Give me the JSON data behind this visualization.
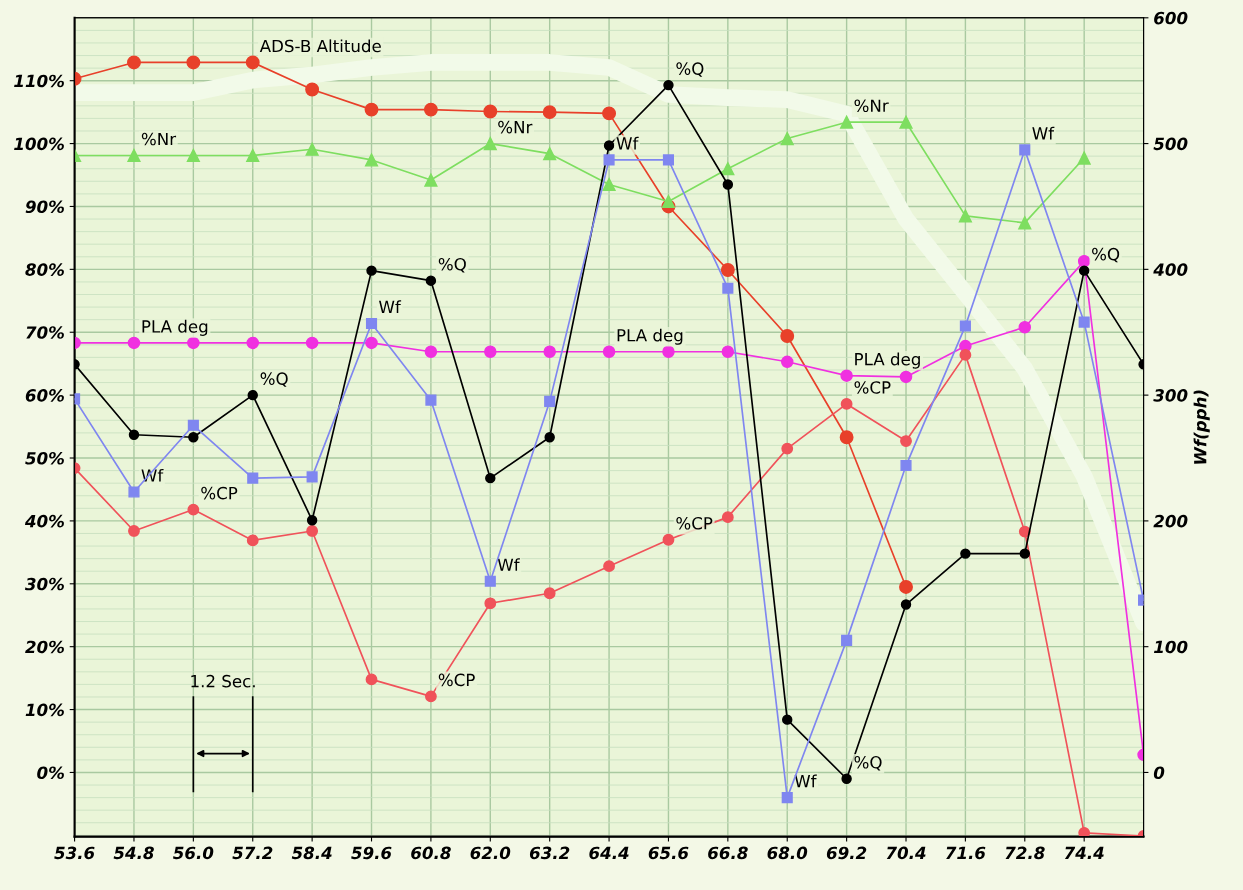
{
  "chart_data": {
    "type": "line",
    "categories": [
      "53.6",
      "54.8",
      "56.0",
      "57.2",
      "58.4",
      "59.6",
      "60.8",
      "62.0",
      "63.2",
      "64.4",
      "65.6",
      "66.8",
      "68.0",
      "69.2",
      "70.4",
      "71.6",
      "72.8",
      "74.4",
      null
    ],
    "y2label": "Wf(pph)",
    "ylim": [
      -10.2,
      120
    ],
    "yticks": [
      {
        "value": 0,
        "label": "0%"
      },
      {
        "value": 10,
        "label": "10%"
      },
      {
        "value": 20,
        "label": "20%"
      },
      {
        "value": 30,
        "label": "30%"
      },
      {
        "value": 40,
        "label": "40%"
      },
      {
        "value": 50,
        "label": "50%"
      },
      {
        "value": 60,
        "label": "60%"
      },
      {
        "value": 70,
        "label": "70%"
      },
      {
        "value": 80,
        "label": "80%"
      },
      {
        "value": 90,
        "label": "90%"
      },
      {
        "value": 100,
        "label": "100%"
      },
      {
        "value": 110,
        "label": "110%"
      }
    ],
    "y2lim": [
      -51,
      600
    ],
    "y2ticks": [
      0,
      100,
      200,
      300,
      400,
      500,
      600
    ],
    "grid": true,
    "series": [
      {
        "color": "#f2fae9",
        "marker": "none",
        "values": [
          108.1,
          108.1,
          108.1,
          110.1,
          110.9,
          112.1,
          112.9,
          112.9,
          112.9,
          112.1,
          107.8,
          107.3,
          107.0,
          104.7,
          88.0,
          76.2,
          64.2,
          47.1,
          23.8
        ]
      },
      {
        "color": "#e8402a",
        "marker": "circle",
        "values": [
          110.3,
          112.9,
          112.9,
          112.9,
          108.6,
          105.4,
          105.4,
          105.1,
          105.0,
          104.8,
          90.0,
          79.9,
          69.4,
          53.3,
          29.5,
          null,
          null,
          null,
          null
        ]
      },
      {
        "color": "#7ede60",
        "marker": "triangle",
        "values": [
          98.1,
          98.1,
          98.1,
          98.1,
          99.1,
          97.4,
          94.2,
          100.0,
          98.4,
          93.5,
          90.8,
          96.0,
          100.8,
          103.4,
          103.4,
          88.5,
          87.4,
          97.7,
          null
        ]
      },
      {
        "color": "#f030e0",
        "marker": "circle",
        "values": [
          68.3,
          68.3,
          68.3,
          68.3,
          68.3,
          68.3,
          66.9,
          66.9,
          66.9,
          66.9,
          66.9,
          66.9,
          65.3,
          63.1,
          62.9,
          67.8,
          70.8,
          81.3,
          2.8
        ]
      },
      {
        "color": "#f0525a",
        "marker": "circle",
        "values": [
          48.4,
          38.4,
          41.8,
          36.9,
          38.4,
          14.8,
          12.1,
          26.9,
          28.5,
          32.8,
          37.0,
          40.6,
          51.5,
          58.6,
          52.7,
          66.4,
          38.3,
          -9.6,
          -10.1
        ]
      },
      {
        "color": "#7f86f0",
        "marker": "square",
        "axis": "y2",
        "values": [
          297,
          223,
          276,
          234,
          235,
          357,
          296,
          152,
          295,
          487,
          487,
          385,
          -20,
          105,
          244,
          355,
          495,
          358,
          137
        ]
      },
      {
        "color": "#000000",
        "marker": "circle",
        "values": [
          64.9,
          53.7,
          53.3,
          60.0,
          40.1,
          79.8,
          78.2,
          46.8,
          53.3,
          99.7,
          109.3,
          93.5,
          8.4,
          -1,
          26.7,
          34.8,
          34.8,
          79.8,
          64.9
        ]
      }
    ],
    "annotations": [
      {
        "text": "ADS-B Altitude",
        "x": "57.2",
        "y": 112.9
      },
      {
        "text": "%Nr",
        "x": "54.8",
        "y": 98.1
      },
      {
        "text": "%Nr",
        "x": "62.0",
        "y": 100.0
      },
      {
        "text": "%Nr",
        "x": "69.2",
        "y": 103.4
      },
      {
        "text": "PLA deg",
        "x": "54.8",
        "y": 68.3
      },
      {
        "text": "PLA deg",
        "x": "64.4",
        "y": 66.9
      },
      {
        "text": "PLA deg",
        "x": "69.2",
        "y": 63.1
      },
      {
        "text": "%Q",
        "x": "57.2",
        "y": 60.0
      },
      {
        "text": "%Q",
        "x": "60.8",
        "y": 78.2
      },
      {
        "text": "%Q",
        "x": "65.6",
        "y": 109.3
      },
      {
        "text": "%Q",
        "x": "69.2",
        "y": -1
      },
      {
        "text": "%Q",
        "x": "74.4",
        "y": 79.8
      },
      {
        "text": "Wf",
        "x": "54.8",
        "y": 44.6
      },
      {
        "text": "Wf",
        "x": "59.6",
        "y": 71.4
      },
      {
        "text": "Wf",
        "x": "62.0",
        "y": 30.4
      },
      {
        "text": "Wf",
        "x": "64.4",
        "y": 97.4
      },
      {
        "text": "Wf",
        "x": "68.0",
        "y": -4
      },
      {
        "text": "Wf",
        "x": "72.8",
        "y": 99
      },
      {
        "text": "%CP",
        "x": "56.0",
        "y": 41.8
      },
      {
        "text": "%CP",
        "x": "60.8",
        "y": 12.1
      },
      {
        "text": "%CP",
        "x": "65.6",
        "y": 37.0
      },
      {
        "text": "%CP",
        "x": "69.2",
        "y": 58.6
      },
      "1.2 Sec."
    ]
  }
}
